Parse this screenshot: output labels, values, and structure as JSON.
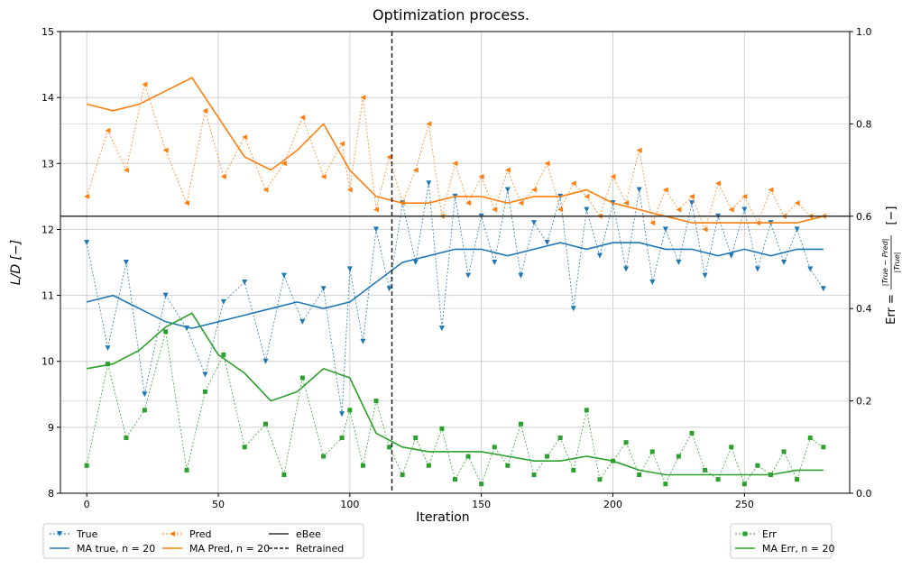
{
  "chart_data": {
    "type": "line",
    "title": "Optimization process.",
    "xlabel": "Iteration",
    "ylabel": "L/D [−]",
    "y2label": "Err = |True − Pred| / |True| [−]",
    "y2label_main": "Err =",
    "y2label_num": "|True − Pred|",
    "y2label_den": "|True|",
    "y2label_unit": "[−]",
    "xlim": [
      -10,
      290
    ],
    "ylim": [
      8,
      15
    ],
    "y2lim": [
      0,
      1
    ],
    "xticks": [
      "0",
      "50",
      "100",
      "150",
      "200",
      "250"
    ],
    "yticks": [
      "8",
      "9",
      "10",
      "11",
      "12",
      "13",
      "14",
      "15"
    ],
    "y2ticks": [
      "0.0",
      "0.2",
      "0.4",
      "0.6",
      "0.8",
      "1.0"
    ],
    "grid": true,
    "reference_lines": [
      {
        "name": "eBee",
        "axis": "y",
        "value": 12.2,
        "style": "solid",
        "color": "#333333"
      },
      {
        "name": "Retrained",
        "axis": "x",
        "value": 116,
        "style": "dashed",
        "color": "#222222"
      }
    ],
    "colors": {
      "true": "#1f77b4",
      "pred": "#ff7f0e",
      "err": "#2ca02c"
    },
    "series": [
      {
        "name": "True",
        "axis": "left",
        "style": "dotted-marker",
        "marker": "triangle-down",
        "color": "#1f77b4",
        "x": [
          0,
          8,
          15,
          22,
          30,
          38,
          45,
          52,
          60,
          68,
          75,
          82,
          90,
          97,
          100,
          105,
          110,
          115,
          120,
          125,
          130,
          135,
          140,
          145,
          150,
          155,
          160,
          165,
          170,
          175,
          180,
          185,
          190,
          195,
          200,
          205,
          210,
          215,
          220,
          225,
          230,
          235,
          240,
          245,
          250,
          255,
          260,
          265,
          270,
          275,
          280
        ],
        "values": [
          11.8,
          10.2,
          11.5,
          9.5,
          11.0,
          10.5,
          9.8,
          10.9,
          11.2,
          10.0,
          11.3,
          10.6,
          11.1,
          9.2,
          11.4,
          10.3,
          12.0,
          11.1,
          12.4,
          11.5,
          12.7,
          10.5,
          12.5,
          11.3,
          12.2,
          11.5,
          12.6,
          11.3,
          12.1,
          11.8,
          12.5,
          10.8,
          12.3,
          11.6,
          12.4,
          11.4,
          12.6,
          11.2,
          12.0,
          11.5,
          12.4,
          11.3,
          12.2,
          11.6,
          12.3,
          11.4,
          12.1,
          11.5,
          12.0,
          11.4,
          11.1
        ]
      },
      {
        "name": "MA true, n = 20",
        "axis": "left",
        "style": "solid",
        "color": "#1f77b4",
        "x": [
          0,
          10,
          20,
          30,
          40,
          50,
          60,
          70,
          80,
          90,
          100,
          110,
          120,
          130,
          140,
          150,
          160,
          170,
          180,
          190,
          200,
          210,
          220,
          230,
          240,
          250,
          260,
          270,
          280
        ],
        "values": [
          10.9,
          11.0,
          10.8,
          10.6,
          10.5,
          10.6,
          10.7,
          10.8,
          10.9,
          10.8,
          10.9,
          11.2,
          11.5,
          11.6,
          11.7,
          11.7,
          11.6,
          11.7,
          11.8,
          11.7,
          11.8,
          11.8,
          11.7,
          11.7,
          11.6,
          11.7,
          11.6,
          11.7,
          11.7
        ]
      },
      {
        "name": "Pred",
        "axis": "left",
        "style": "dotted-marker",
        "marker": "triangle-left",
        "color": "#ff7f0e",
        "x": [
          0,
          8,
          15,
          22,
          30,
          38,
          45,
          52,
          60,
          68,
          75,
          82,
          90,
          97,
          100,
          105,
          110,
          115,
          120,
          125,
          130,
          135,
          140,
          145,
          150,
          155,
          160,
          165,
          170,
          175,
          180,
          185,
          190,
          195,
          200,
          205,
          210,
          215,
          220,
          225,
          230,
          235,
          240,
          245,
          250,
          255,
          260,
          265,
          270,
          275,
          280
        ],
        "values": [
          12.5,
          13.5,
          12.9,
          14.2,
          13.2,
          12.4,
          13.8,
          12.8,
          13.4,
          12.6,
          13.0,
          13.7,
          12.8,
          13.3,
          12.6,
          14.0,
          12.3,
          13.1,
          12.4,
          12.9,
          13.6,
          12.2,
          13.0,
          12.4,
          12.8,
          12.3,
          12.9,
          12.4,
          12.6,
          13.0,
          12.3,
          12.7,
          12.5,
          12.2,
          12.8,
          12.4,
          13.2,
          12.1,
          12.6,
          12.3,
          12.5,
          12.0,
          12.7,
          12.3,
          12.5,
          12.1,
          12.6,
          12.2,
          12.4,
          12.2,
          12.2
        ]
      },
      {
        "name": "MA Pred, n = 20",
        "axis": "left",
        "style": "solid",
        "color": "#ff7f0e",
        "x": [
          0,
          10,
          20,
          30,
          40,
          50,
          60,
          70,
          80,
          90,
          100,
          110,
          120,
          130,
          140,
          150,
          160,
          170,
          180,
          190,
          200,
          210,
          220,
          230,
          240,
          250,
          260,
          270,
          280
        ],
        "values": [
          13.9,
          13.8,
          13.9,
          14.1,
          14.3,
          13.7,
          13.1,
          12.9,
          13.2,
          13.6,
          12.9,
          12.5,
          12.4,
          12.4,
          12.5,
          12.5,
          12.4,
          12.5,
          12.5,
          12.6,
          12.4,
          12.3,
          12.2,
          12.1,
          12.1,
          12.1,
          12.1,
          12.1,
          12.2
        ]
      },
      {
        "name": "Err",
        "axis": "right",
        "style": "dotted-marker",
        "marker": "square",
        "color": "#2ca02c",
        "x": [
          0,
          8,
          15,
          22,
          30,
          38,
          45,
          52,
          60,
          68,
          75,
          82,
          90,
          97,
          100,
          105,
          110,
          115,
          120,
          125,
          130,
          135,
          140,
          145,
          150,
          155,
          160,
          165,
          170,
          175,
          180,
          185,
          190,
          195,
          200,
          205,
          210,
          215,
          220,
          225,
          230,
          235,
          240,
          245,
          250,
          255,
          260,
          265,
          270,
          275,
          280
        ],
        "values": [
          0.06,
          0.28,
          0.12,
          0.18,
          0.35,
          0.05,
          0.22,
          0.3,
          0.1,
          0.15,
          0.04,
          0.25,
          0.08,
          0.12,
          0.18,
          0.06,
          0.2,
          0.1,
          0.04,
          0.12,
          0.06,
          0.14,
          0.03,
          0.08,
          0.02,
          0.1,
          0.06,
          0.15,
          0.04,
          0.08,
          0.12,
          0.05,
          0.18,
          0.03,
          0.07,
          0.11,
          0.04,
          0.09,
          0.02,
          0.08,
          0.13,
          0.05,
          0.03,
          0.1,
          0.02,
          0.06,
          0.04,
          0.09,
          0.03,
          0.12,
          0.1
        ]
      },
      {
        "name": "MA Err, n = 20",
        "axis": "right",
        "style": "solid",
        "color": "#2ca02c",
        "x": [
          0,
          10,
          20,
          30,
          40,
          50,
          60,
          70,
          80,
          90,
          100,
          110,
          120,
          130,
          140,
          150,
          160,
          170,
          180,
          190,
          200,
          210,
          220,
          230,
          240,
          250,
          260,
          270,
          280
        ],
        "values": [
          0.27,
          0.28,
          0.31,
          0.36,
          0.39,
          0.3,
          0.26,
          0.2,
          0.22,
          0.27,
          0.25,
          0.13,
          0.1,
          0.09,
          0.09,
          0.09,
          0.08,
          0.07,
          0.07,
          0.08,
          0.07,
          0.05,
          0.04,
          0.04,
          0.04,
          0.04,
          0.04,
          0.05,
          0.05
        ]
      }
    ],
    "legends": [
      {
        "placement": "bottom-left",
        "columns": 3,
        "entries": [
          "True",
          "Pred",
          "eBee",
          "MA true, n = 20",
          "MA Pred, n = 20",
          "Retrained"
        ]
      },
      {
        "placement": "bottom-right",
        "columns": 1,
        "entries": [
          "Err",
          "MA Err, n = 20"
        ]
      }
    ]
  }
}
